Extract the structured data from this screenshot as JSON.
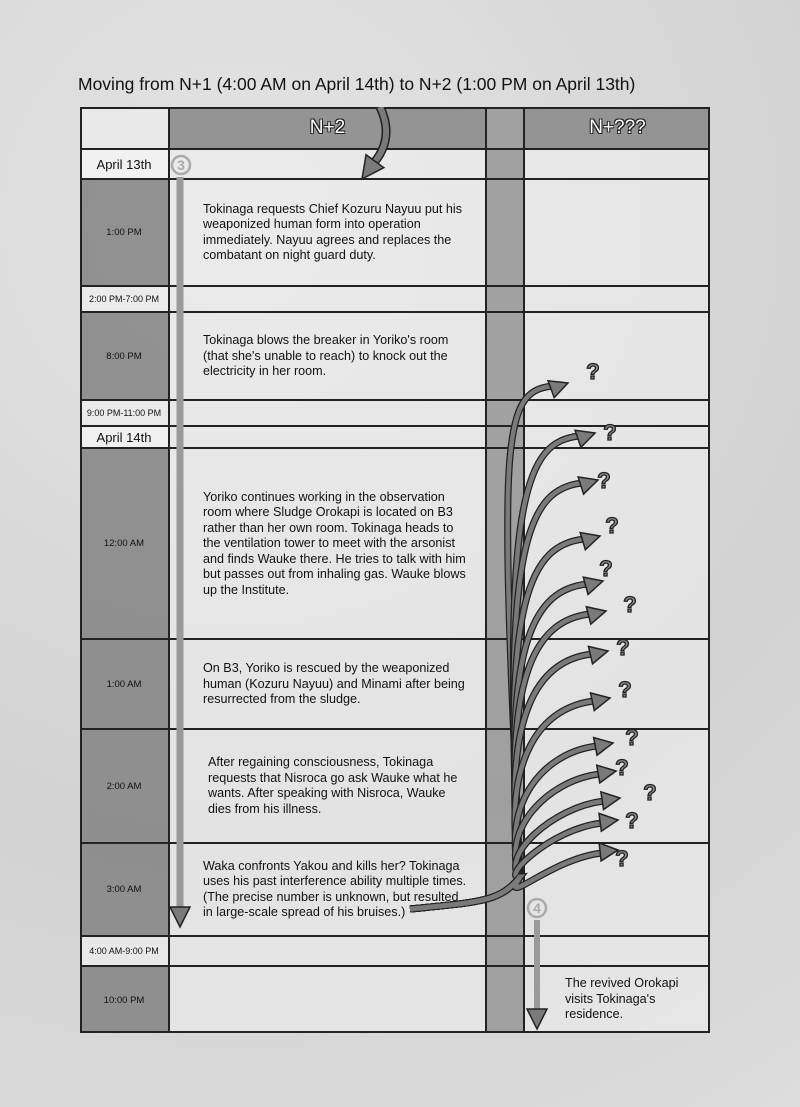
{
  "title": "Moving from N+1 (4:00 AM on April 14th) to N+2 (1:00 PM on April 13th)",
  "headers": {
    "col1": "N+2",
    "col2": "N+???"
  },
  "rows": [
    {
      "label": "April 13th",
      "kind": "date",
      "text": ""
    },
    {
      "label": "1:00 PM",
      "kind": "time",
      "text": "Tokinaga requests Chief Kozuru Nayuu put his weaponized human form into operation immediately. Nayuu agrees and replaces the combatant on night guard duty."
    },
    {
      "label": "2:00 PM-7:00 PM",
      "kind": "sep",
      "text": ""
    },
    {
      "label": "8:00 PM",
      "kind": "time",
      "text": "Tokinaga blows the breaker in Yoriko's room (that she's unable to reach) to knock out the electricity in her room."
    },
    {
      "label": "9:00 PM-11:00 PM",
      "kind": "sep",
      "text": ""
    },
    {
      "label": "April 14th",
      "kind": "date",
      "text": ""
    },
    {
      "label": "12:00 AM",
      "kind": "time",
      "text": "Yoriko continues working in the observation room where Sludge Orokapi is located on B3 rather than her own room. Tokinaga heads to the ventilation tower to meet with the arsonist and finds Wauke there. He tries to talk with him but passes out from inhaling gas. Wauke blows up the Institute."
    },
    {
      "label": "1:00 AM",
      "kind": "time",
      "text": "On B3, Yoriko is rescued by the weaponized human (Kozuru Nayuu) and Minami after being resurrected from the sludge."
    },
    {
      "label": "2:00 AM",
      "kind": "time",
      "text": "After regaining consciousness, Tokinaga requests that Nisroca go ask Wauke what he wants. After speaking with Nisroca, Wauke dies from his illness."
    },
    {
      "label": "3:00 AM",
      "kind": "time",
      "text": "Waka confronts Yakou and kills her? Tokinaga uses his past interference ability multiple times. (The precise number is unknown, but resulted in large-scale spread of his bruises.)"
    },
    {
      "label": "4:00 AM-9:00 PM",
      "kind": "sep",
      "text": ""
    },
    {
      "label": "10:00 PM",
      "kind": "time",
      "text": "",
      "text2": "The revived Orokapi visits Tokinaga's residence."
    }
  ],
  "markers": {
    "step3": "3",
    "step4": "4",
    "unknown": "?"
  },
  "colors": {
    "arrow": "#7a7a7a",
    "header": "#8c8c8c",
    "gap": "#969696"
  }
}
